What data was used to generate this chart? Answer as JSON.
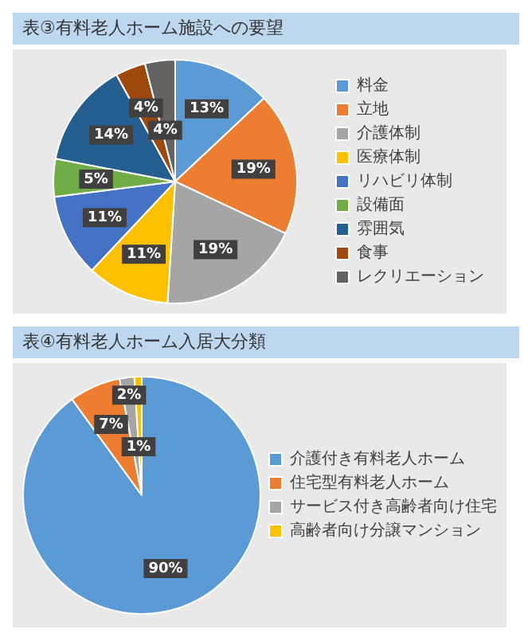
{
  "chart_data": [
    {
      "type": "pie",
      "title": "表③有料老人ホーム施設への要望",
      "categories": [
        "料金",
        "立地",
        "介護体制",
        "医療体制",
        "リハビリ体制",
        "設備面",
        "雰囲気",
        "食事",
        "レクリエーション"
      ],
      "values": [
        13,
        19,
        19,
        11,
        11,
        5,
        14,
        4,
        4
      ],
      "colors": [
        "#5b9bd5",
        "#ed7d31",
        "#a5a5a5",
        "#ffc000",
        "#4472c4",
        "#70ad47",
        "#255e91",
        "#9e480e",
        "#636363"
      ],
      "value_labels": [
        "13%",
        "19%",
        "19%",
        "11%",
        "11%",
        "5%",
        "14%",
        "4%",
        "4%"
      ],
      "legend": "right"
    },
    {
      "type": "pie",
      "title": "表④有料老人ホーム入居大分類",
      "categories": [
        "介護付き有料老人ホーム",
        "住宅型有料老人ホーム",
        "サービス付き高齢者向け住宅",
        "高齢者向け分譲マンション"
      ],
      "values": [
        90,
        7,
        2,
        1
      ],
      "colors": [
        "#5b9bd5",
        "#ed7d31",
        "#a5a5a5",
        "#ffc000"
      ],
      "value_labels": [
        "90%",
        "7%",
        "2%",
        "1%"
      ],
      "legend": "right"
    }
  ]
}
